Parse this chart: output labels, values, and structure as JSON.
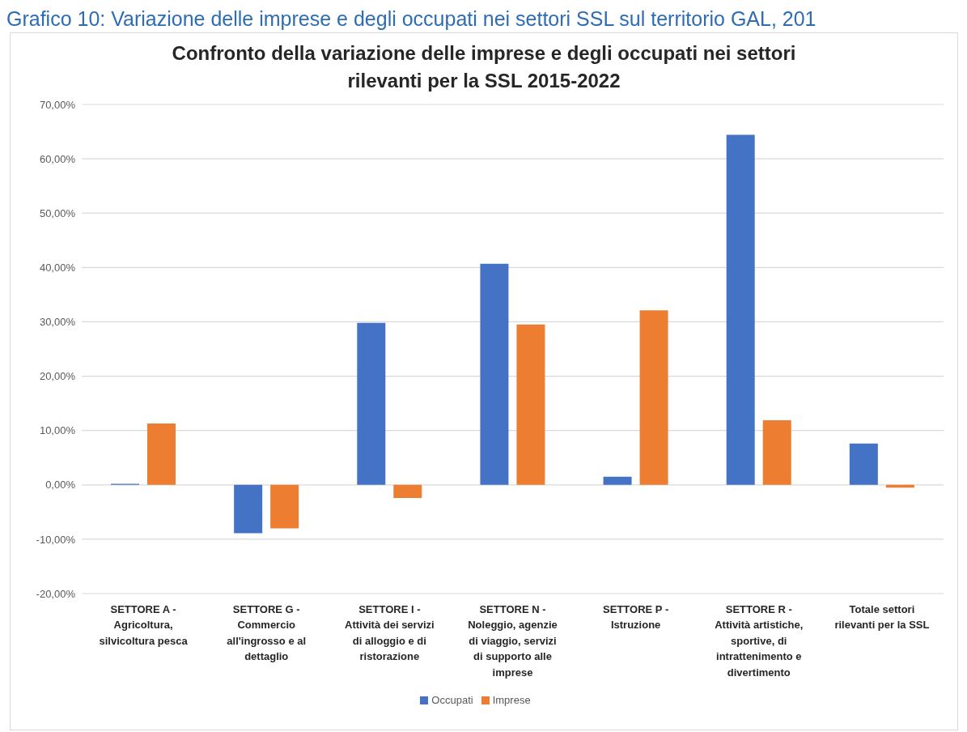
{
  "chart_data": {
    "type": "bar",
    "title": "Confronto della variazione delle imprese e degli occupati nei settori rilevanti per la SSL 2015-2022",
    "annotations": [
      "Grafico 10: Variazione delle imprese e degli occupati nei settori SSL sul territorio GAL, 201"
    ],
    "categories": [
      "SETTORE A - Agricoltura, silvicoltura pesca",
      "SETTORE G - Commercio all'ingrosso e al dettaglio",
      "SETTORE I - Attività dei servizi di alloggio e di ristorazione",
      "SETTORE N - Noleggio, agenzie di viaggio, servizi di supporto alle imprese",
      "SETTORE P - Istruzione",
      "SETTORE R - Attività artistiche, sportive, di intrattenimento e divertimento",
      "Totale settori rilevanti per la SSL"
    ],
    "series": [
      {
        "name": "Occupati",
        "color": "#4472c4",
        "values": [
          0.2,
          -8.9,
          29.8,
          40.7,
          1.5,
          64.4,
          7.6
        ]
      },
      {
        "name": "Imprese",
        "color": "#ed7d31",
        "values": [
          11.3,
          -8.0,
          -2.4,
          29.5,
          32.1,
          11.9,
          -0.5
        ]
      }
    ],
    "ylim": [
      -20,
      70
    ],
    "yticks": [
      {
        "value": -20,
        "label": "-20,00%"
      },
      {
        "value": -10,
        "label": "-10,00%"
      },
      {
        "value": 0,
        "label": "0,00%"
      },
      {
        "value": 10,
        "label": "10,00%"
      },
      {
        "value": 20,
        "label": "20,00%"
      },
      {
        "value": 30,
        "label": "30,00%"
      },
      {
        "value": 40,
        "label": "40,00%"
      },
      {
        "value": 50,
        "label": "50,00%"
      },
      {
        "value": 60,
        "label": "60,00%"
      },
      {
        "value": 70,
        "label": "70,00%"
      }
    ],
    "grid": "y",
    "legend": "bottom"
  }
}
